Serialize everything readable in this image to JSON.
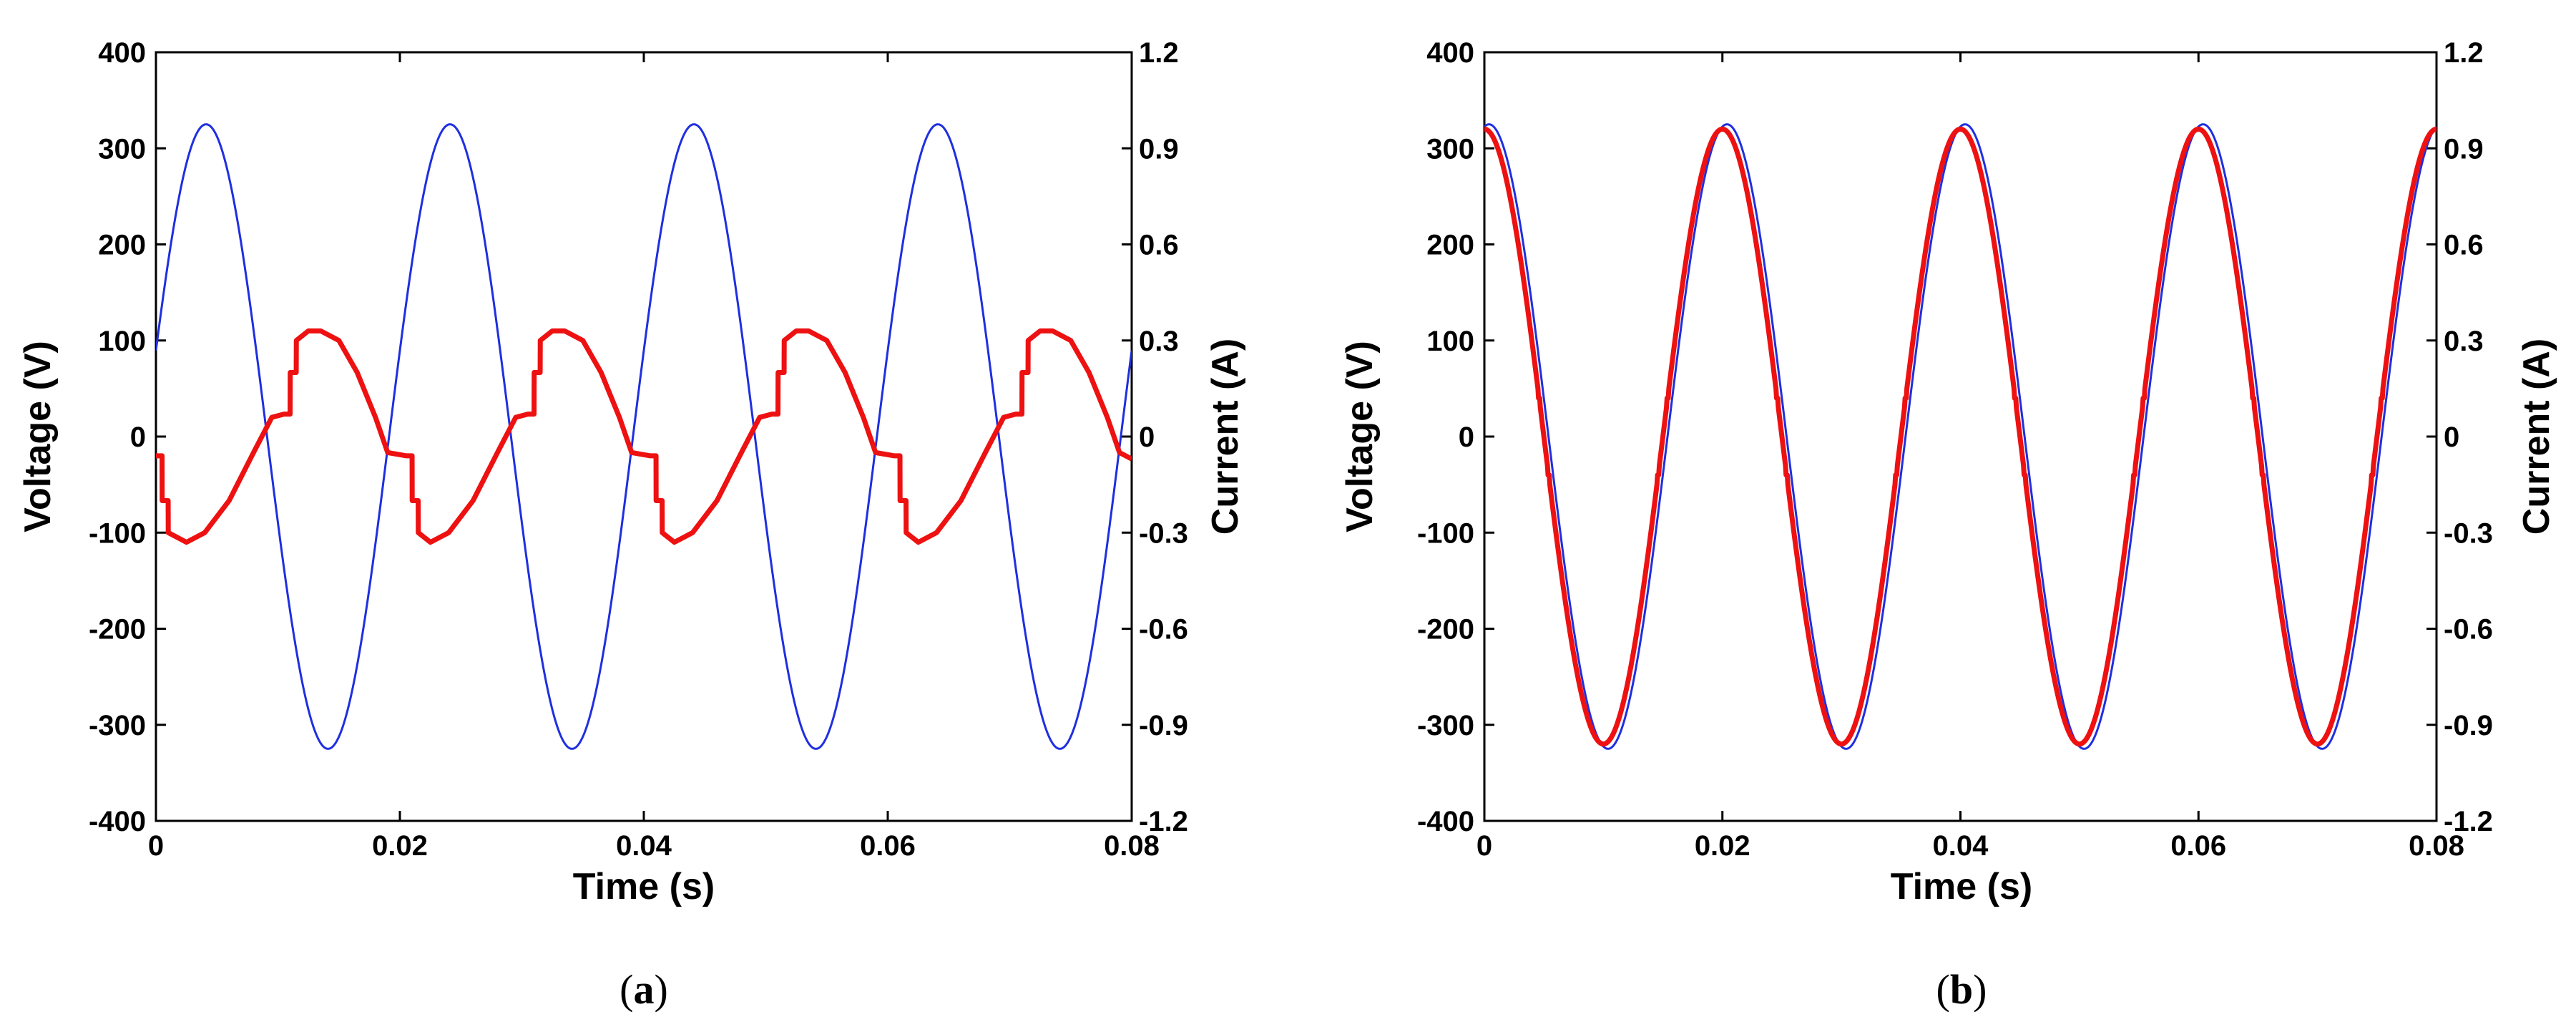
{
  "chart_data": [
    {
      "type": "line",
      "panel": "a",
      "caption_open": "(",
      "caption_letter": "a",
      "caption_close": ")",
      "xlabel": "Time (s)",
      "ylabel": "Voltage (V)",
      "y2label": "Current (A)",
      "xlim": [
        0,
        0.08
      ],
      "ylim": [
        -400,
        400
      ],
      "y2lim": [
        -1.2,
        1.2
      ],
      "xticks": [
        "0",
        "0.02",
        "0.04",
        "0.06",
        "0.08"
      ],
      "yticks": [
        "-400",
        "-300",
        "-200",
        "-100",
        "0",
        "100",
        "200",
        "300",
        "400"
      ],
      "y2ticks": [
        "-1.2",
        "-0.9",
        "-0.6",
        "-0.3",
        "0",
        "0.3",
        "0.6",
        "0.9",
        "1.2"
      ],
      "series": [
        {
          "name": "Voltage",
          "axis": "left",
          "color": "#1f2fe0",
          "function": "sine",
          "amplitude": 325,
          "frequency_hz": 50,
          "phase_deg": 16
        },
        {
          "name": "Current",
          "axis": "right",
          "color": "#ee1111",
          "x": [
            0,
            0.0005,
            0.00051,
            0.001,
            0.00101,
            0.0025,
            0.004,
            0.006,
            0.008,
            0.0095,
            0.0105,
            0.011,
            0.01101,
            0.0115,
            0.01151,
            0.0125,
            0.0135,
            0.015,
            0.0165,
            0.018,
            0.019,
            0.0205,
            0.021,
            0.02101,
            0.0215,
            0.02151,
            0.0225,
            0.024,
            0.026,
            0.028,
            0.0295,
            0.0305,
            0.031,
            0.03101,
            0.0315,
            0.03151,
            0.0325,
            0.0335,
            0.035,
            0.0365,
            0.038,
            0.039,
            0.0405,
            0.041,
            0.04101,
            0.0415,
            0.04151,
            0.0425,
            0.044,
            0.046,
            0.048,
            0.0495,
            0.0505,
            0.051,
            0.05101,
            0.0515,
            0.05151,
            0.0525,
            0.0535,
            0.055,
            0.0565,
            0.058,
            0.059,
            0.0605,
            0.061,
            0.06101,
            0.0615,
            0.06151,
            0.0625,
            0.064,
            0.066,
            0.068,
            0.0695,
            0.0705,
            0.071,
            0.07101,
            0.0715,
            0.07151,
            0.0725,
            0.0735,
            0.075,
            0.0765,
            0.078,
            0.079,
            0.08
          ],
          "y": [
            -0.06,
            -0.06,
            -0.2,
            -0.2,
            -0.3,
            -0.33,
            -0.3,
            -0.2,
            -0.05,
            0.06,
            0.07,
            0.07,
            0.2,
            0.2,
            0.3,
            0.33,
            0.33,
            0.3,
            0.2,
            0.06,
            -0.05,
            -0.06,
            -0.06,
            -0.2,
            -0.2,
            -0.3,
            -0.33,
            -0.3,
            -0.2,
            -0.05,
            0.06,
            0.07,
            0.07,
            0.2,
            0.2,
            0.3,
            0.33,
            0.33,
            0.3,
            0.2,
            0.06,
            -0.05,
            -0.06,
            -0.06,
            -0.2,
            -0.2,
            -0.3,
            -0.33,
            -0.3,
            -0.2,
            -0.05,
            0.06,
            0.07,
            0.07,
            0.2,
            0.2,
            0.3,
            0.33,
            0.33,
            0.3,
            0.2,
            0.06,
            -0.05,
            -0.06,
            -0.06,
            -0.2,
            -0.2,
            -0.3,
            -0.33,
            -0.3,
            -0.2,
            -0.05,
            0.06,
            0.07,
            0.07,
            0.2,
            0.2,
            0.3,
            0.33,
            0.33,
            0.3,
            0.2,
            0.06,
            -0.05,
            -0.07
          ]
        }
      ]
    },
    {
      "type": "line",
      "panel": "b",
      "caption_open": "(",
      "caption_letter": "b",
      "caption_close": ")",
      "xlabel": "Time (s)",
      "ylabel": "Voltage (V)",
      "y2label": "Current (A)",
      "xlim": [
        0,
        0.08
      ],
      "ylim": [
        -400,
        400
      ],
      "y2lim": [
        -1.2,
        1.2
      ],
      "xticks": [
        "0",
        "0.02",
        "0.04",
        "0.06",
        "0.08"
      ],
      "yticks": [
        "-400",
        "-300",
        "-200",
        "-100",
        "0",
        "100",
        "200",
        "300",
        "400"
      ],
      "y2ticks": [
        "-1.2",
        "-0.9",
        "-0.6",
        "-0.3",
        "0",
        "0.3",
        "0.6",
        "0.9",
        "1.2"
      ],
      "series": [
        {
          "name": "Voltage",
          "axis": "left",
          "color": "#1f2fe0",
          "function": "sine",
          "amplitude": 325,
          "frequency_hz": 50,
          "phase_deg": 83
        },
        {
          "name": "Current",
          "axis": "right",
          "color": "#ee1111",
          "function": "sine",
          "amplitude": 0.96,
          "frequency_hz": 50,
          "phase_deg": 90,
          "notch_level": 0.12
        }
      ]
    }
  ]
}
